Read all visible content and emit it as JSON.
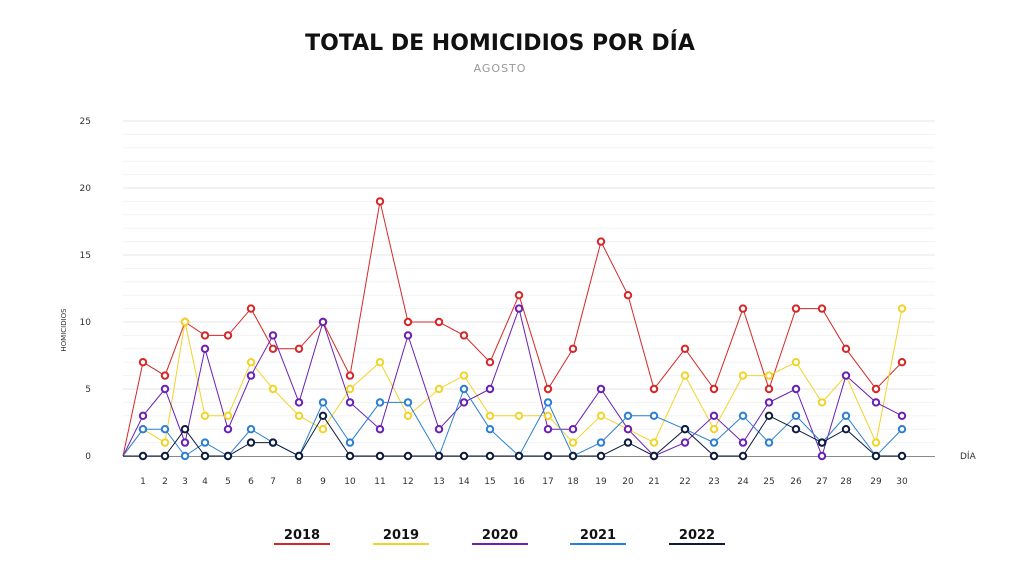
{
  "chart_data": {
    "type": "line",
    "title": "TOTAL DE HOMICIDIOS POR DÍA",
    "subtitle": "AGOSTO",
    "xlabel": "DÍA",
    "ylabel": "HOMICIDIOS",
    "ylim": [
      0,
      25
    ],
    "yticks": [
      0,
      5,
      10,
      15,
      20,
      25
    ],
    "grid": true,
    "legend_position": "bottom",
    "x": [
      0,
      1,
      2,
      3,
      4,
      5,
      6,
      7,
      8,
      9,
      10,
      11,
      12,
      13,
      14,
      15,
      16,
      17,
      18,
      19,
      20,
      21,
      22,
      23,
      24,
      25,
      26,
      27,
      28,
      29,
      30
    ],
    "x_tick_labels": [
      "1",
      "2",
      "3",
      "4",
      "5",
      "6",
      "7",
      "8",
      "9",
      "10",
      "11",
      "12",
      "13",
      "14",
      "15",
      "16",
      "17",
      "18",
      "19",
      "20",
      "21",
      "22",
      "23",
      "24",
      "25",
      "26",
      "27",
      "28",
      "29",
      "30"
    ],
    "series": [
      {
        "name": "2018",
        "color": "#d62728",
        "values": [
          0,
          7,
          6,
          10,
          9,
          9,
          11,
          8,
          8,
          10,
          6,
          19,
          10,
          10,
          9,
          7,
          12,
          5,
          8,
          16,
          12,
          5,
          8,
          5,
          11,
          5,
          11,
          11,
          8,
          5,
          7
        ]
      },
      {
        "name": "2019",
        "color": "#f2d32a",
        "values": [
          0,
          2,
          1,
          10,
          3,
          3,
          7,
          5,
          3,
          2,
          5,
          7,
          3,
          5,
          6,
          3,
          3,
          3,
          1,
          3,
          2,
          1,
          6,
          2,
          6,
          6,
          7,
          4,
          6,
          1,
          11
        ]
      },
      {
        "name": "2020",
        "color": "#6a1fb5",
        "values": [
          0,
          3,
          5,
          1,
          8,
          2,
          6,
          9,
          4,
          10,
          4,
          2,
          9,
          2,
          4,
          5,
          11,
          2,
          2,
          5,
          2,
          0,
          1,
          3,
          1,
          4,
          5,
          0,
          6,
          4,
          3
        ]
      },
      {
        "name": "2021",
        "color": "#2a7fd4",
        "values": [
          0,
          2,
          2,
          0,
          1,
          0,
          2,
          1,
          0,
          4,
          1,
          4,
          4,
          0,
          5,
          2,
          0,
          4,
          0,
          1,
          3,
          3,
          2,
          1,
          3,
          1,
          3,
          1,
          3,
          0,
          2
        ]
      },
      {
        "name": "2022",
        "color": "#0d1b3e",
        "values": [
          0,
          0,
          0,
          2,
          0,
          0,
          1,
          1,
          0,
          3,
          0,
          0,
          0,
          0,
          0,
          0,
          0,
          0,
          0,
          0,
          1,
          0,
          2,
          0,
          0,
          3,
          2,
          1,
          2,
          0,
          0
        ]
      }
    ]
  }
}
